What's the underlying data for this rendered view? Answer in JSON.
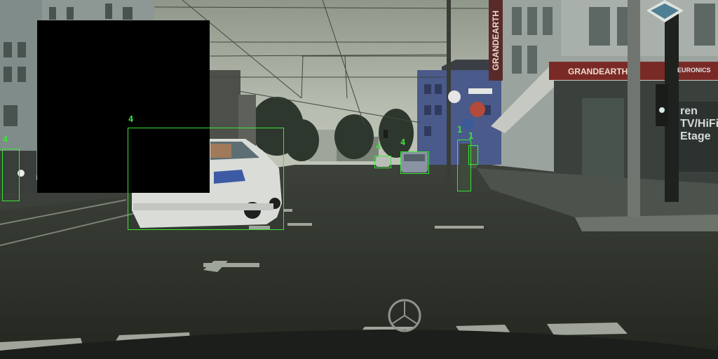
{
  "signs": {
    "store_name_vertical": "GRANDEARTH",
    "store_name_awning": "GRANDEARTH",
    "awning_brand": "EURONICS",
    "window_text_line1": "ren",
    "window_text_line2": "TV/HiFi",
    "window_text_line3": "Etage"
  },
  "detections": [
    {
      "class_id": "4"
    },
    {
      "class_id": "4"
    },
    {
      "class_id": "4"
    },
    {
      "class_id": "4"
    },
    {
      "class_id": "1"
    },
    {
      "class_id": "1"
    }
  ],
  "colors": {
    "detection_box": "#39e639",
    "redaction": "#000000",
    "sky": "#b9c0b2",
    "road": "#2c302a"
  }
}
